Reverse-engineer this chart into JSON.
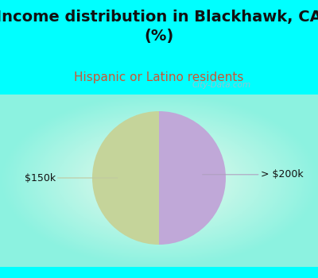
{
  "title": "Income distribution in Blackhawk, CA\n(%)",
  "subtitle": "Hispanic or Latino residents",
  "slices": [
    {
      "label": "$150k",
      "value": 50,
      "color": "#c5d49a"
    },
    {
      "label": "> $200k",
      "value": 50,
      "color": "#c0a8d8"
    }
  ],
  "title_fontsize": 14,
  "subtitle_fontsize": 11,
  "subtitle_color": "#cc5533",
  "title_color": "#111111",
  "bg_cyan": "#00ffff",
  "watermark": "City-Data.com",
  "label_fontsize": 9,
  "label_color": "#111111",
  "line_color": "#b0a0c0",
  "line_color_left": "#c0c8a0"
}
